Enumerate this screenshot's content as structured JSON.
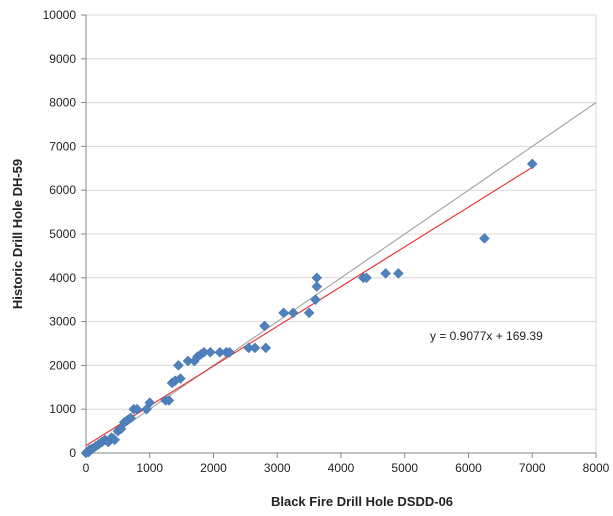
{
  "chart_data": {
    "type": "scatter",
    "xlabel": "Black Fire Drill Hole DSDD-06",
    "ylabel": "Historic Drill Hole DH-59",
    "xlim": [
      0,
      8000
    ],
    "ylim": [
      0,
      10000
    ],
    "x_ticks": [
      0,
      1000,
      2000,
      3000,
      4000,
      5000,
      6000,
      7000,
      8000
    ],
    "y_ticks": [
      0,
      1000,
      2000,
      3000,
      4000,
      5000,
      6000,
      7000,
      8000,
      9000,
      10000
    ],
    "x_tick_labels": [
      "0",
      "1000",
      "2000",
      "3000",
      "4000",
      "5000",
      "6000",
      "7000",
      "8000"
    ],
    "y_tick_labels": [
      "0",
      "1000",
      "2000",
      "3000",
      "4000",
      "5000",
      "6000",
      "7000",
      "8000",
      "9000",
      "10000"
    ],
    "grid": "horizontal",
    "marker_color": "#4f81bd",
    "points": [
      [
        0,
        0
      ],
      [
        40,
        20
      ],
      [
        60,
        80
      ],
      [
        100,
        100
      ],
      [
        150,
        150
      ],
      [
        200,
        200
      ],
      [
        250,
        250
      ],
      [
        300,
        300
      ],
      [
        350,
        250
      ],
      [
        400,
        350
      ],
      [
        450,
        300
      ],
      [
        500,
        500
      ],
      [
        550,
        550
      ],
      [
        600,
        700
      ],
      [
        650,
        750
      ],
      [
        700,
        800
      ],
      [
        750,
        1000
      ],
      [
        800,
        1000
      ],
      [
        950,
        1000
      ],
      [
        1000,
        1150
      ],
      [
        1250,
        1200
      ],
      [
        1300,
        1200
      ],
      [
        1350,
        1600
      ],
      [
        1400,
        1650
      ],
      [
        1450,
        2000
      ],
      [
        1480,
        1700
      ],
      [
        1600,
        2100
      ],
      [
        1700,
        2100
      ],
      [
        1750,
        2200
      ],
      [
        1800,
        2250
      ],
      [
        1850,
        2300
      ],
      [
        1950,
        2300
      ],
      [
        2100,
        2300
      ],
      [
        2200,
        2300
      ],
      [
        2250,
        2300
      ],
      [
        2550,
        2400
      ],
      [
        2650,
        2400
      ],
      [
        2800,
        2900
      ],
      [
        2820,
        2400
      ],
      [
        3100,
        3200
      ],
      [
        3250,
        3200
      ],
      [
        3500,
        3200
      ],
      [
        3600,
        3500
      ],
      [
        3620,
        3800
      ],
      [
        3620,
        4000
      ],
      [
        4350,
        4000
      ],
      [
        4400,
        4000
      ],
      [
        4700,
        4100
      ],
      [
        4900,
        4100
      ],
      [
        6250,
        4900
      ],
      [
        7000,
        6600
      ]
    ],
    "trendline": {
      "color": "#e8393b",
      "slope": 0.9077,
      "intercept": 169.39,
      "x_range": [
        0,
        7000
      ],
      "equation_label": "y = 0.9077x + 169.39"
    },
    "reference_line": {
      "color": "#a6a6a6",
      "slope": 1,
      "intercept": 0,
      "x_range": [
        0,
        8000
      ]
    }
  }
}
